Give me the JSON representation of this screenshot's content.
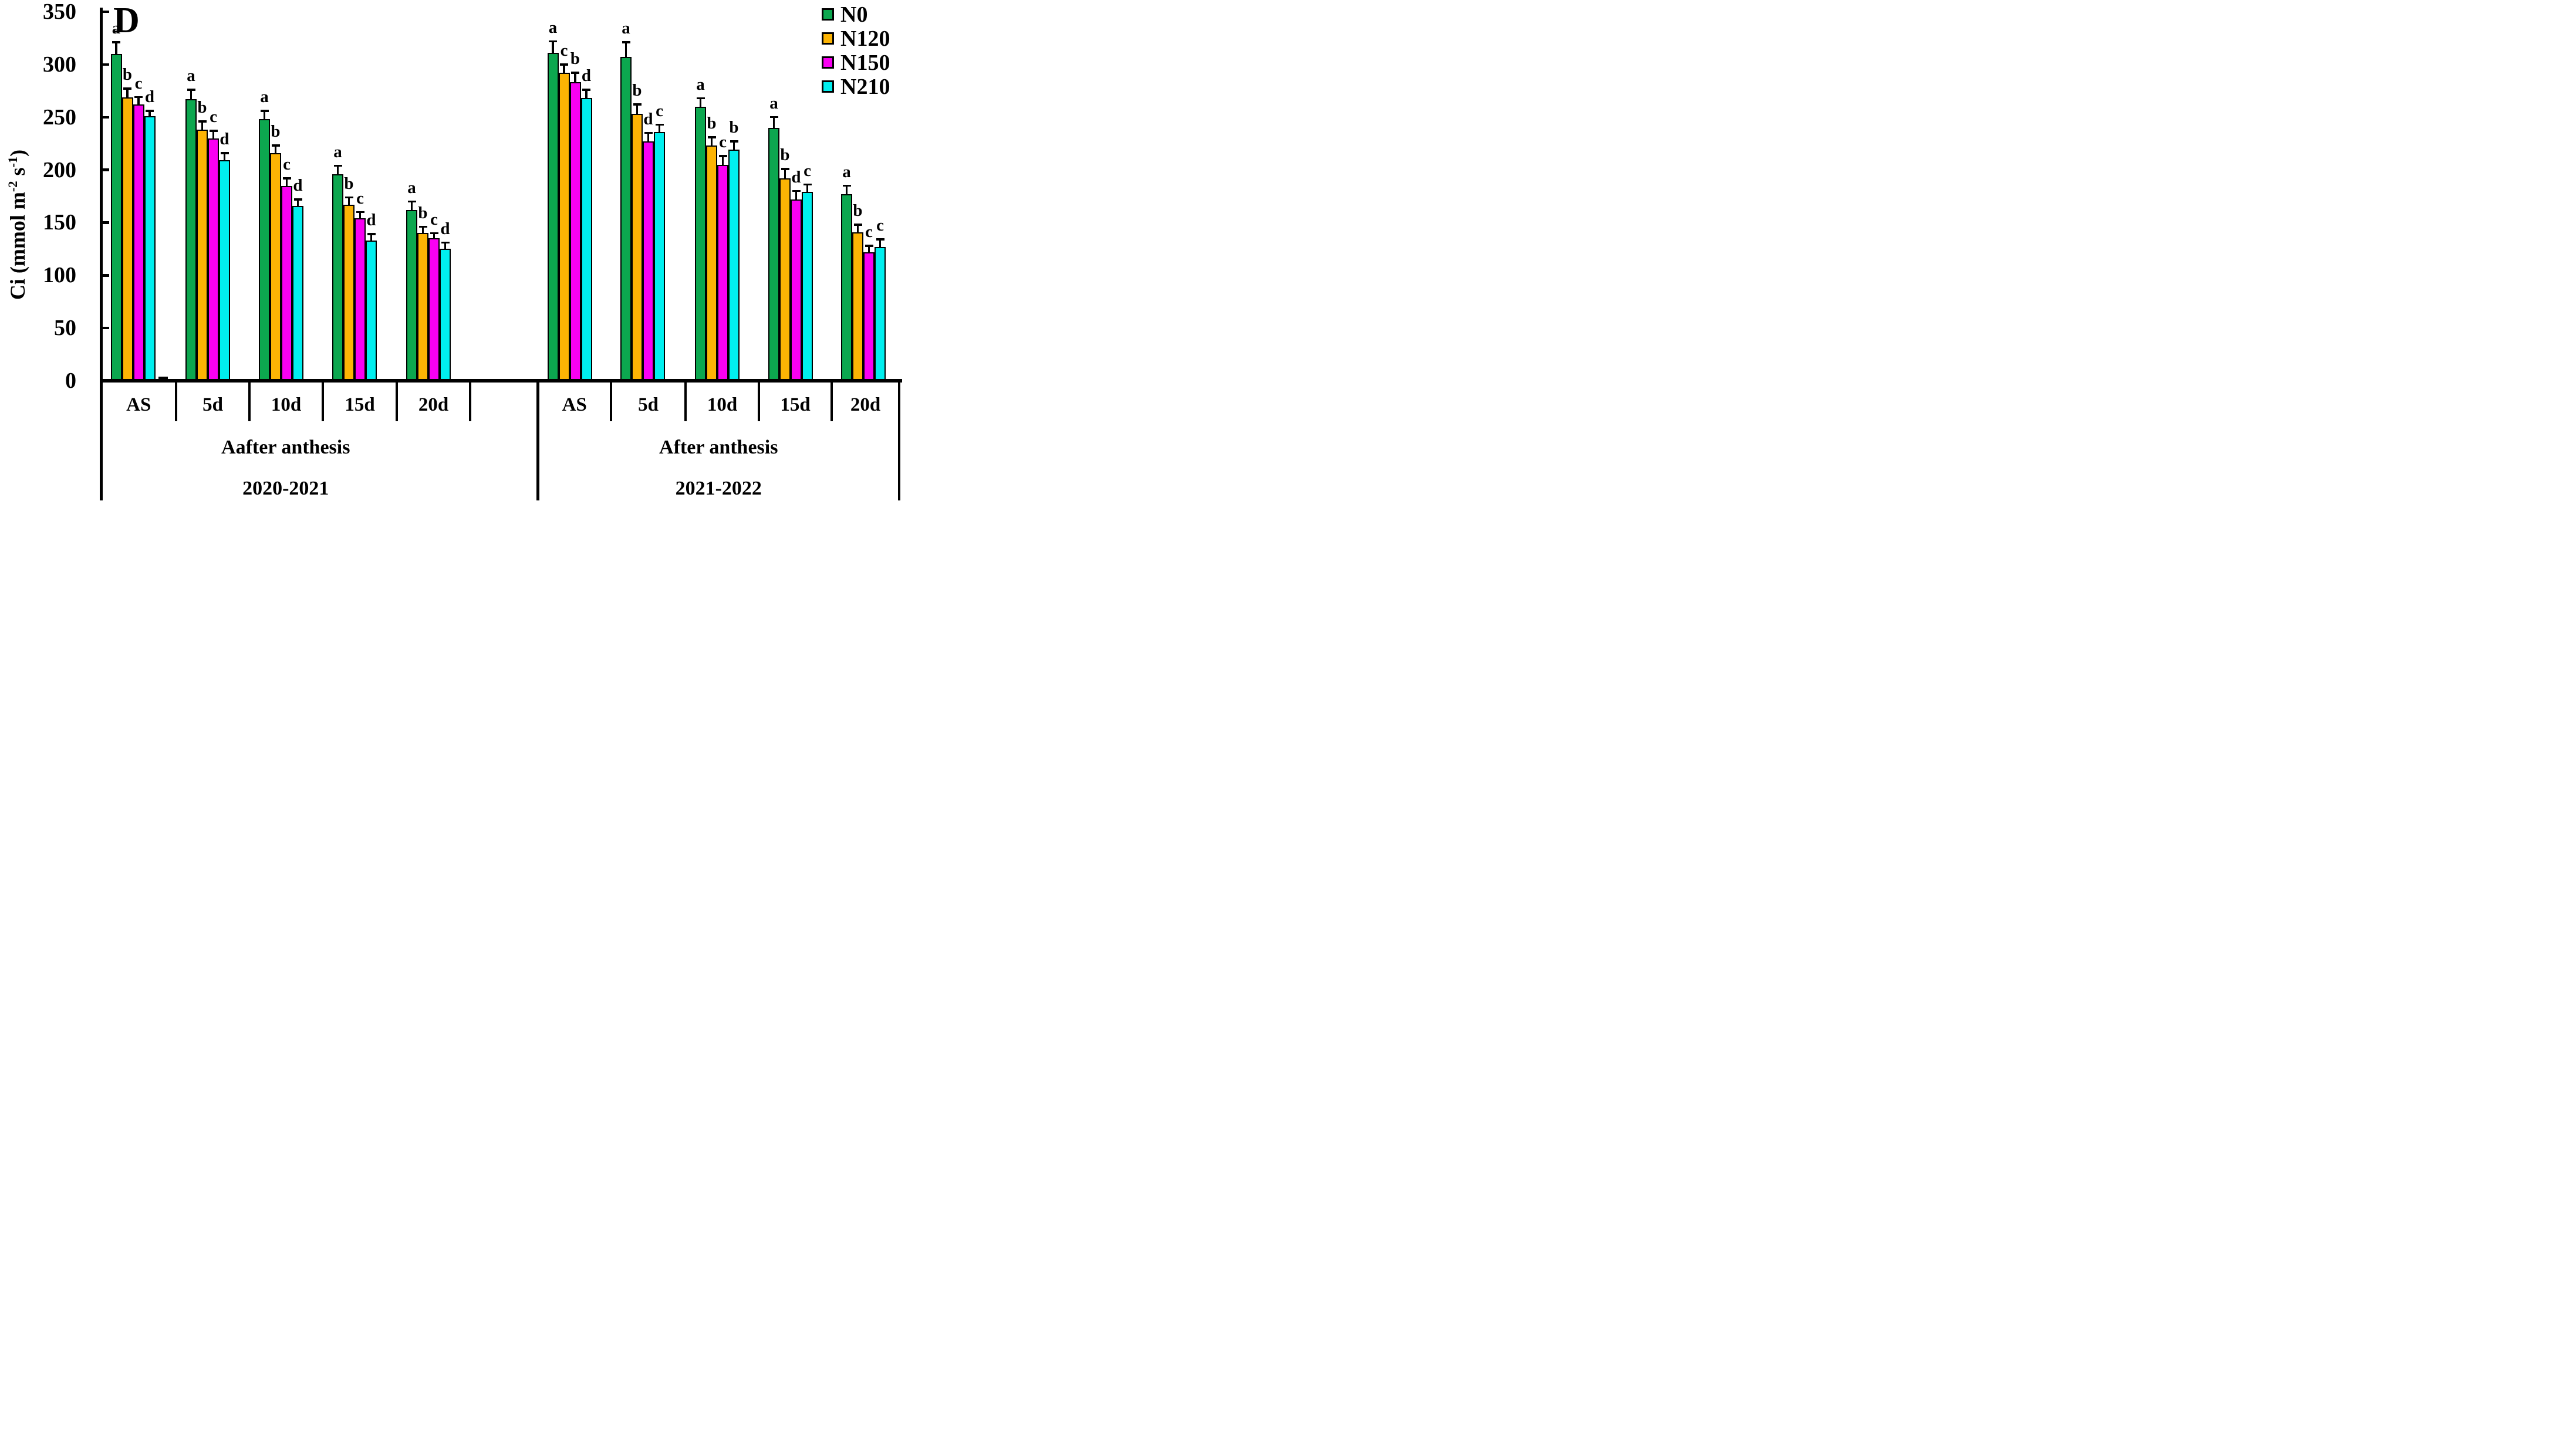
{
  "figure_title": {
    "panel_letter": "D"
  },
  "y_axis": {
    "label_plain": "Ci (mmol m-2 s-1)",
    "label_parts": [
      {
        "text": "Ci (mmol m"
      },
      {
        "sup": "-2"
      },
      {
        "text": " s"
      },
      {
        "sup": "-1"
      },
      {
        "text": ")"
      }
    ],
    "tick_labels": [
      "0",
      "50",
      "100",
      "150",
      "200",
      "250",
      "300",
      "350"
    ],
    "range": [
      0,
      350
    ]
  },
  "legend": {
    "position": "top-right",
    "items": [
      {
        "label": "N0",
        "color": "#0CA74F"
      },
      {
        "label": "N120",
        "color": "#FCB404"
      },
      {
        "label": "N150",
        "color": "#F900F2"
      },
      {
        "label": "N210",
        "color": "#00EFEF"
      }
    ]
  },
  "chart_data": {
    "type": "bar",
    "title": "",
    "xlabel": "",
    "ylabel": "Ci (mmol m-2 s-1)",
    "ylim": [
      0,
      350
    ],
    "grid": false,
    "error_bars": true,
    "series_names": [
      "N0",
      "N120",
      "N150",
      "N210"
    ],
    "panels": [
      {
        "season": "2020-2021",
        "period_label": "Aafter anthesis",
        "categories": [
          "AS",
          "5d",
          "10d",
          "15d",
          "20d"
        ],
        "groups": [
          {
            "category": "AS",
            "bars": [
              {
                "series": "N0",
                "value": 310,
                "err": 12,
                "letter": "a"
              },
              {
                "series": "N120",
                "value": 269,
                "err": 9,
                "letter": "b"
              },
              {
                "series": "N150",
                "value": 262,
                "err": 8,
                "letter": "c"
              },
              {
                "series": "N210",
                "value": 251,
                "err": 6,
                "letter": "d"
              }
            ]
          },
          {
            "category": "5d",
            "bars": [
              {
                "series": "N0",
                "value": 267,
                "err": 10,
                "letter": "a"
              },
              {
                "series": "N120",
                "value": 238,
                "err": 9,
                "letter": "b"
              },
              {
                "series": "N150",
                "value": 230,
                "err": 8,
                "letter": "c"
              },
              {
                "series": "N210",
                "value": 209,
                "err": 8,
                "letter": "d"
              }
            ]
          },
          {
            "category": "10d",
            "bars": [
              {
                "series": "N0",
                "value": 248,
                "err": 9,
                "letter": "a"
              },
              {
                "series": "N120",
                "value": 216,
                "err": 8,
                "letter": "b"
              },
              {
                "series": "N150",
                "value": 185,
                "err": 8,
                "letter": "c"
              },
              {
                "series": "N210",
                "value": 166,
                "err": 7,
                "letter": "d"
              }
            ]
          },
          {
            "category": "15d",
            "bars": [
              {
                "series": "N0",
                "value": 196,
                "err": 9,
                "letter": "a"
              },
              {
                "series": "N120",
                "value": 167,
                "err": 8,
                "letter": "b"
              },
              {
                "series": "N150",
                "value": 154,
                "err": 7,
                "letter": "c"
              },
              {
                "series": "N210",
                "value": 133,
                "err": 7,
                "letter": "d"
              }
            ]
          },
          {
            "category": "20d",
            "bars": [
              {
                "series": "N0",
                "value": 162,
                "err": 9,
                "letter": "a"
              },
              {
                "series": "N120",
                "value": 140,
                "err": 7,
                "letter": "b"
              },
              {
                "series": "N150",
                "value": 135,
                "err": 6,
                "letter": "c"
              },
              {
                "series": "N210",
                "value": 125,
                "err": 7,
                "letter": "d"
              }
            ]
          }
        ]
      },
      {
        "season": "2021-2022",
        "period_label": "After anthesis",
        "categories": [
          "AS",
          "5d",
          "10d",
          "15d",
          "20d"
        ],
        "groups": [
          {
            "category": "AS",
            "bars": [
              {
                "series": "N0",
                "value": 311,
                "err": 12,
                "letter": "a"
              },
              {
                "series": "N120",
                "value": 292,
                "err": 9,
                "letter": "c"
              },
              {
                "series": "N150",
                "value": 283,
                "err": 10,
                "letter": "b"
              },
              {
                "series": "N210",
                "value": 268,
                "err": 9,
                "letter": "d"
              }
            ]
          },
          {
            "category": "5d",
            "bars": [
              {
                "series": "N0",
                "value": 307,
                "err": 15,
                "letter": "a"
              },
              {
                "series": "N120",
                "value": 253,
                "err": 10,
                "letter": "b"
              },
              {
                "series": "N150",
                "value": 227,
                "err": 9,
                "letter": "d"
              },
              {
                "series": "N210",
                "value": 236,
                "err": 8,
                "letter": "c"
              }
            ]
          },
          {
            "category": "10d",
            "bars": [
              {
                "series": "N0",
                "value": 260,
                "err": 9,
                "letter": "a"
              },
              {
                "series": "N120",
                "value": 223,
                "err": 9,
                "letter": "b"
              },
              {
                "series": "N150",
                "value": 205,
                "err": 9,
                "letter": "c"
              },
              {
                "series": "N210",
                "value": 219,
                "err": 9,
                "letter": "b"
              }
            ]
          },
          {
            "category": "15d",
            "bars": [
              {
                "series": "N0",
                "value": 240,
                "err": 11,
                "letter": "a"
              },
              {
                "series": "N120",
                "value": 192,
                "err": 10,
                "letter": "b"
              },
              {
                "series": "N150",
                "value": 172,
                "err": 9,
                "letter": "d"
              },
              {
                "series": "N210",
                "value": 179,
                "err": 8,
                "letter": "c"
              }
            ]
          },
          {
            "category": "20d",
            "bars": [
              {
                "series": "N0",
                "value": 177,
                "err": 9,
                "letter": "a"
              },
              {
                "series": "N120",
                "value": 141,
                "err": 8,
                "letter": "b"
              },
              {
                "series": "N150",
                "value": 122,
                "err": 7,
                "letter": "c"
              },
              {
                "series": "N210",
                "value": 127,
                "err": 8,
                "letter": "c"
              }
            ]
          }
        ]
      }
    ]
  },
  "colors": {
    "bar_n0": "#0CA74F",
    "bar_n120": "#FCB404",
    "bar_n150": "#F900F2",
    "bar_n210": "#00EFEF",
    "ink": "#000000",
    "background": "#FFFFFF"
  }
}
